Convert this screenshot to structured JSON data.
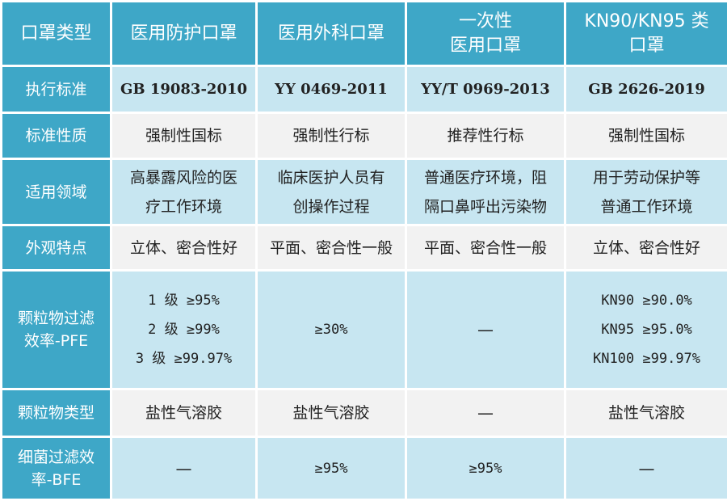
{
  "header": {
    "corner": "口罩类型",
    "columns": [
      {
        "lines": [
          "医用防护口罩"
        ]
      },
      {
        "lines": [
          "医用外科口罩"
        ]
      },
      {
        "lines": [
          "一次性",
          "医用口罩"
        ]
      },
      {
        "lines": [
          "KN90/KN95 类",
          "口罩"
        ]
      }
    ]
  },
  "rows": [
    {
      "label": [
        "执行标准"
      ],
      "cells": [
        [
          "GB 19083-2010"
        ],
        [
          "YY 0469-2011"
        ],
        [
          "YY/T 0969-2013"
        ],
        [
          "GB 2626-2019"
        ]
      ]
    },
    {
      "label": [
        "标准性质"
      ],
      "cells": [
        [
          "强制性国标"
        ],
        [
          "强制性行标"
        ],
        [
          "推荐性行标"
        ],
        [
          "强制性国标"
        ]
      ]
    },
    {
      "label": [
        "适用领域"
      ],
      "cells": [
        [
          "高暴露风险的医",
          "疗工作环境"
        ],
        [
          "临床医护人员有",
          "创操作过程"
        ],
        [
          "普通医疗环境，阻",
          "隔口鼻呼出污染物"
        ],
        [
          "用于劳动保护等",
          "普通工作环境"
        ]
      ]
    },
    {
      "label": [
        "外观特点"
      ],
      "cells": [
        [
          "立体、密合性好"
        ],
        [
          "平面、密合性一般"
        ],
        [
          "平面、密合性一般"
        ],
        [
          "立体、密合性好"
        ]
      ]
    },
    {
      "label": [
        "颗粒物过滤",
        "效率-PFE"
      ],
      "cells": [
        [
          "1 级 ≥95%",
          "2 级 ≥99%",
          "3 级 ≥99.97%"
        ],
        [
          "≥30%"
        ],
        [
          "—"
        ],
        [
          "KN90 ≥90.0%",
          "KN95 ≥95.0%",
          "KN100 ≥99.97%"
        ]
      ]
    },
    {
      "label": [
        "颗粒物类型"
      ],
      "cells": [
        [
          "盐性气溶胶"
        ],
        [
          "盐性气溶胶"
        ],
        [
          "—"
        ],
        [
          "盐性气溶胶"
        ]
      ]
    },
    {
      "label": [
        "细菌过滤效",
        "率-BFE"
      ],
      "cells": [
        [
          "—"
        ],
        [
          "≥95%"
        ],
        [
          "≥95%"
        ],
        [
          "—"
        ]
      ]
    }
  ],
  "colors": {
    "header_bg": "#3ea7c7",
    "row_light_blue": "#c7e6f1",
    "row_light_gray": "#f2f2f2",
    "border": "#ffffff"
  }
}
